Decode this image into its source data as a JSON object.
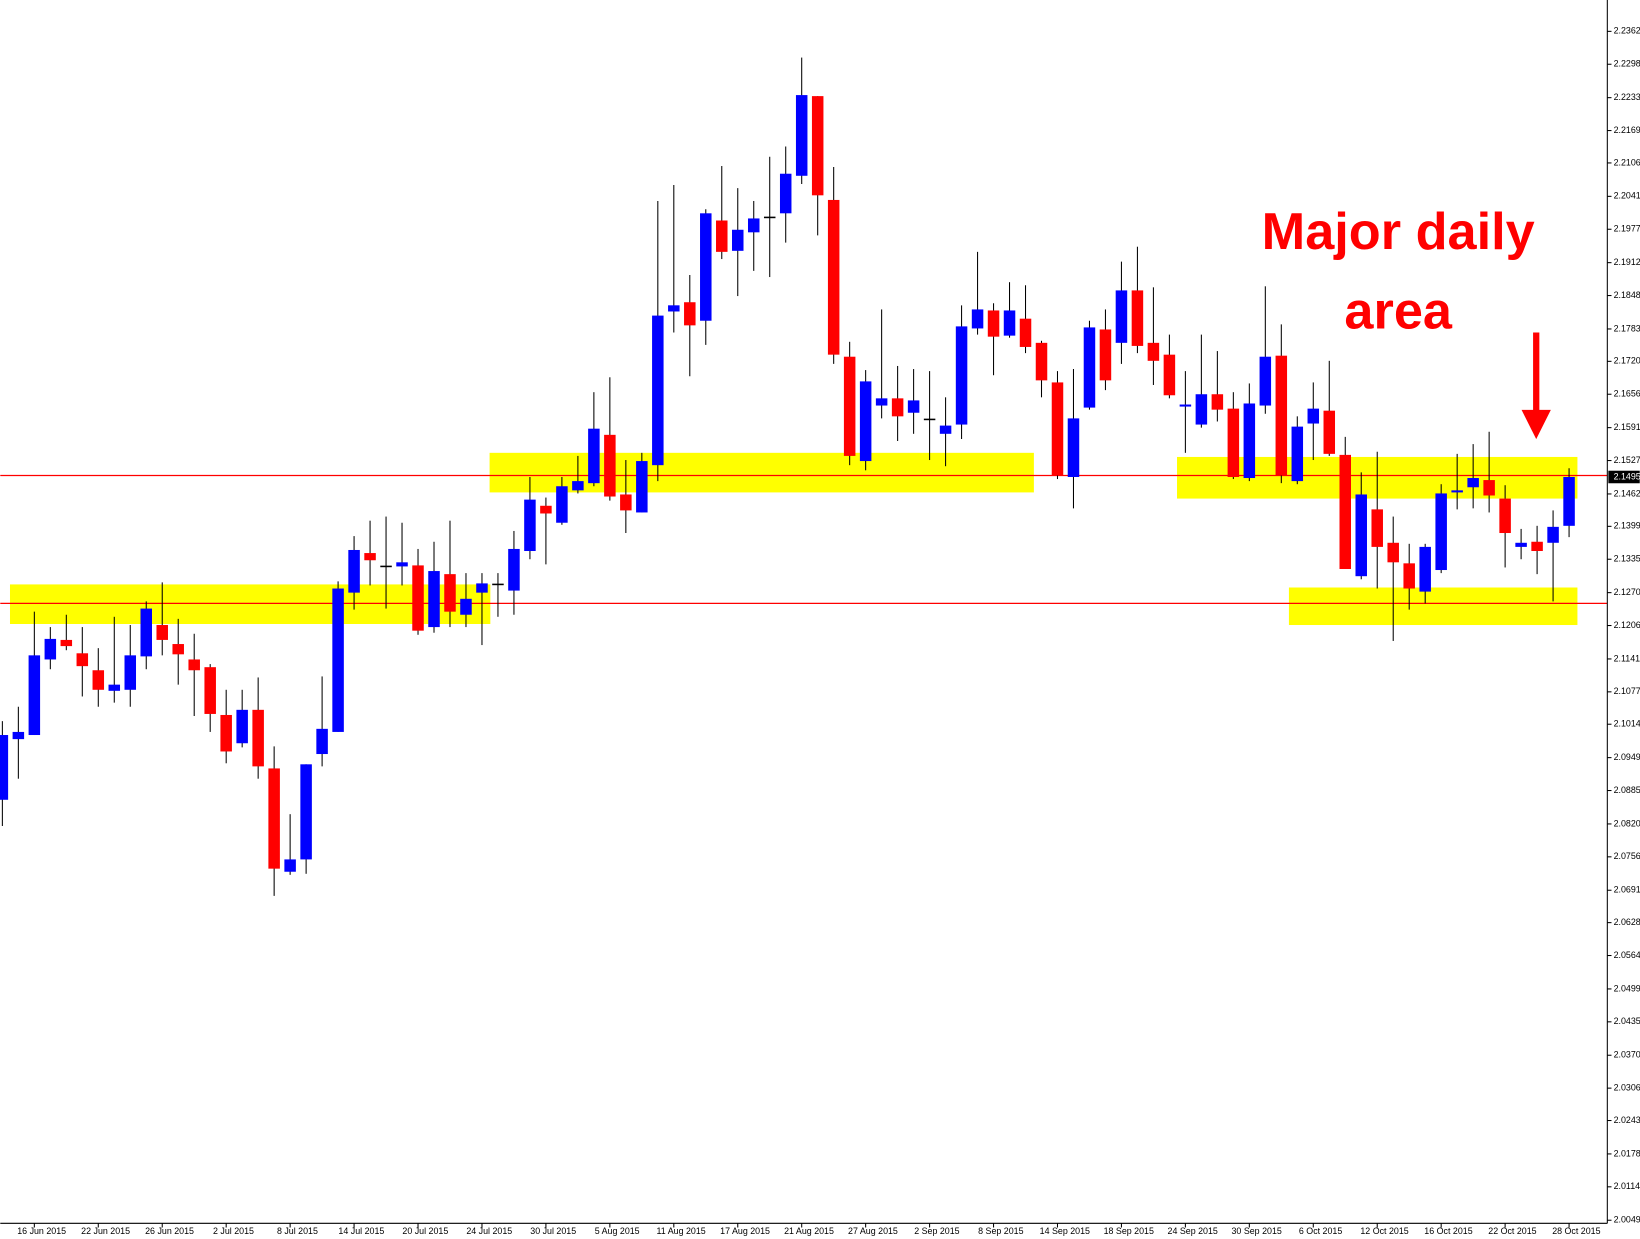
{
  "chart_data": {
    "type": "candlestick",
    "categories": [
      null,
      null,
      "16 Jun 2015",
      null,
      null,
      null,
      "22 Jun 2015",
      null,
      null,
      null,
      "26 Jun 2015",
      null,
      null,
      null,
      "2 Jul 2015",
      null,
      null,
      null,
      "8 Jul 2015",
      null,
      null,
      null,
      "14 Jul 2015",
      null,
      null,
      null,
      "20 Jul 2015",
      null,
      null,
      null,
      "24 Jul 2015",
      null,
      null,
      null,
      "30 Jul 2015",
      null,
      null,
      null,
      "5 Aug 2015",
      null,
      null,
      null,
      "11 Aug 2015",
      null,
      null,
      null,
      "17 Aug 2015",
      null,
      null,
      null,
      "21 Aug 2015",
      null,
      null,
      null,
      "27 Aug 2015",
      null,
      null,
      null,
      "2 Sep 2015",
      null,
      null,
      null,
      "8 Sep 2015",
      null,
      null,
      null,
      "14 Sep 2015",
      null,
      null,
      null,
      "18 Sep 2015",
      null,
      null,
      null,
      "24 Sep 2015",
      null,
      null,
      null,
      "30 Sep 2015",
      null,
      null,
      null,
      "6 Oct 2015",
      null,
      null,
      null,
      "12 Oct 2015",
      null,
      null,
      null,
      "16 Oct 2015",
      null,
      null,
      null,
      "22 Oct 2015",
      null,
      null,
      null,
      "28 Oct 2015"
    ],
    "open": [
      2.0867,
      2.0985,
      2.0993,
      2.114,
      2.1178,
      2.1152,
      2.1119,
      2.1079,
      2.1081,
      2.1146,
      2.1207,
      2.117,
      2.114,
      2.1125,
      2.1032,
      2.0977,
      2.1042,
      2.0928,
      2.0727,
      2.0751,
      2.0956,
      2.0999,
      2.127,
      2.1347,
      2.1321,
      2.1321,
      2.1323,
      2.1203,
      2.1306,
      2.1227,
      2.127,
      2.1286,
      2.1274,
      2.1351,
      2.1439,
      2.1406,
      2.1469,
      2.1483,
      2.1577,
      2.1461,
      2.1426,
      2.1518,
      2.1817,
      2.1835,
      2.1799,
      2.1994,
      2.1935,
      2.1971,
      2.2,
      2.2008,
      2.2081,
      2.2236,
      2.2034,
      2.1729,
      2.1526,
      2.1634,
      2.1648,
      2.162,
      2.1607,
      2.1579,
      2.1597,
      2.1784,
      2.1819,
      2.177,
      2.1803,
      2.1756,
      2.1679,
      2.1495,
      2.163,
      2.1782,
      2.1756,
      2.1858,
      2.1756,
      2.1733,
      2.1632,
      2.1597,
      2.1656,
      2.1628,
      2.1493,
      2.1634,
      2.1731,
      2.1487,
      2.1599,
      2.1624,
      2.1538,
      2.1302,
      2.1432,
      2.1367,
      2.1327,
      2.1272,
      2.1314,
      2.1465,
      2.1475,
      2.1489,
      2.1453,
      2.1359,
      2.1369,
      2.1367,
      2.14
    ],
    "high": [
      2.102,
      2.1048,
      2.1233,
      2.1203,
      2.1227,
      2.1203,
      2.1162,
      2.1223,
      2.1207,
      2.1253,
      2.129,
      2.1219,
      2.119,
      2.1131,
      2.1081,
      2.1081,
      2.1105,
      2.0971,
      2.0839,
      2.0936,
      2.1107,
      2.1292,
      2.138,
      2.141,
      2.1418,
      2.1406,
      2.1355,
      2.1369,
      2.141,
      2.1308,
      2.1308,
      2.1308,
      2.139,
      2.1495,
      2.1455,
      2.1495,
      2.1536,
      2.166,
      2.1689,
      2.1528,
      2.1542,
      2.2032,
      2.2063,
      2.1888,
      2.2016,
      2.21,
      2.2057,
      2.2032,
      2.2118,
      2.2138,
      2.2311,
      2.2236,
      2.2098,
      2.1758,
      2.1703,
      2.1821,
      2.1711,
      2.1705,
      2.1701,
      2.165,
      2.1829,
      2.1933,
      2.1833,
      2.1874,
      2.1868,
      2.176,
      2.1701,
      2.1705,
      2.1799,
      2.1821,
      2.1914,
      2.1943,
      2.1864,
      2.1772,
      2.1701,
      2.1772,
      2.174,
      2.166,
      2.1677,
      2.1866,
      2.1792,
      2.1613,
      2.1679,
      2.1721,
      2.1573,
      2.1504,
      2.1544,
      2.1418,
      2.1365,
      2.1365,
      2.1481,
      2.154,
      2.1559,
      2.1583,
      2.1479,
      2.1394,
      2.14,
      2.143,
      2.1512
    ],
    "low": [
      2.0816,
      2.0908,
      2.0993,
      2.1121,
      2.1158,
      2.1068,
      2.1048,
      2.1056,
      2.1048,
      2.1121,
      2.1148,
      2.1091,
      2.103,
      2.0999,
      2.0938,
      2.0969,
      2.0908,
      2.068,
      2.0721,
      2.0723,
      2.0932,
      2.0999,
      2.1237,
      2.1284,
      2.1239,
      2.1284,
      2.1188,
      2.1192,
      2.1203,
      2.1203,
      2.1168,
      2.1223,
      2.1227,
      2.1335,
      2.1325,
      2.1402,
      2.1463,
      2.1477,
      2.1449,
      2.1386,
      2.1426,
      2.1487,
      2.1776,
      2.1691,
      2.1752,
      2.1919,
      2.1847,
      2.1896,
      2.1884,
      2.1951,
      2.2065,
      2.1965,
      2.1715,
      2.1518,
      2.1508,
      2.1609,
      2.1565,
      2.1579,
      2.1528,
      2.1516,
      2.1569,
      2.1772,
      2.1693,
      2.1766,
      2.1736,
      2.165,
      2.1491,
      2.1434,
      2.1626,
      2.1664,
      2.1715,
      2.1736,
      2.1674,
      2.1648,
      2.1542,
      2.1591,
      2.1603,
      2.1491,
      2.1487,
      2.1618,
      2.1483,
      2.1481,
      2.1528,
      2.1536,
      2.1316,
      2.1296,
      2.1278,
      2.1176,
      2.1237,
      2.1249,
      2.1308,
      2.1432,
      2.1434,
      2.1426,
      2.1319,
      2.1335,
      2.1306,
      2.1253,
      2.1378
    ],
    "close": [
      2.0993,
      2.0999,
      2.1148,
      2.118,
      2.1166,
      2.1127,
      2.1081,
      2.1091,
      2.1148,
      2.1239,
      2.1178,
      2.115,
      2.1119,
      2.1034,
      2.0961,
      2.1042,
      2.0932,
      2.0733,
      2.0751,
      2.0936,
      2.1005,
      2.1278,
      2.1353,
      2.1333,
      2.1321,
      2.1329,
      2.1196,
      2.1312,
      2.1233,
      2.1258,
      2.1288,
      2.1286,
      2.1355,
      2.1451,
      2.1424,
      2.1477,
      2.1487,
      2.1589,
      2.1457,
      2.143,
      2.1526,
      2.1809,
      2.1829,
      2.179,
      2.2008,
      2.1933,
      2.1976,
      2.1998,
      2.2,
      2.2085,
      2.2238,
      2.2043,
      2.1733,
      2.1536,
      2.1681,
      2.1648,
      2.1613,
      2.1644,
      2.1607,
      2.1595,
      2.1788,
      2.1821,
      2.1768,
      2.1819,
      2.1748,
      2.1683,
      2.1498,
      2.1609,
      2.1786,
      2.1683,
      2.1858,
      2.175,
      2.1721,
      2.1654,
      2.1636,
      2.1656,
      2.1626,
      2.1495,
      2.1638,
      2.1729,
      2.1498,
      2.1593,
      2.1628,
      2.154,
      2.1316,
      2.1461,
      2.1359,
      2.1329,
      2.1278,
      2.1359,
      2.1463,
      2.1469,
      2.1493,
      2.1459,
      2.1386,
      2.1367,
      2.1351,
      2.1398,
      2.1495
    ],
    "up_color": "#0000ff",
    "down_color": "#ff0000",
    "doji_color": "#000000",
    "ylim": [
      2.0043,
      2.2423
    ],
    "yticks": [
      2.2362,
      2.2298,
      2.2233,
      2.2169,
      2.2106,
      2.2041,
      2.1977,
      2.1912,
      2.1848,
      2.1783,
      {
        "value": 2.172,
        "label": "2.1720"
      },
      2.1656,
      2.1591,
      2.1527,
      2.1462,
      2.1399,
      2.1335,
      {
        "value": 2.127,
        "label": "2.1270"
      },
      2.1206,
      2.1141,
      2.1077,
      2.1014,
      2.0949,
      2.0885,
      {
        "value": 2.082,
        "label": "2.0820"
      },
      2.0756,
      2.0691,
      2.0628,
      2.0564,
      2.0499,
      2.0435,
      {
        "value": 2.037,
        "label": "2.0370"
      },
      2.0306,
      2.0243,
      2.0178,
      2.0114,
      2.0049
    ],
    "current_price": 2.1495,
    "hlines": [
      2.1498,
      2.1249
    ],
    "hline_color": "#ff0000",
    "zones": [
      {
        "from": 1,
        "to": 30,
        "top": 2.1286,
        "bottom": 2.1209
      },
      {
        "from": 31,
        "to": 64,
        "top": 2.1542,
        "bottom": 2.1465
      },
      {
        "from": 74,
        "to": 98,
        "top": 2.1534,
        "bottom": 2.1453
      },
      {
        "from": 81,
        "to": 98,
        "top": 2.128,
        "bottom": 2.1207
      }
    ],
    "zone_color": "#ffff00",
    "annotation": [
      "Major daily",
      "area"
    ]
  }
}
